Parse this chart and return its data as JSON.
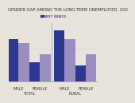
{
  "title": "GENDER GAP AMONG THE LONG-TERM UNEMPLOYED, 200",
  "series": {
    "2007": [
      65,
      30,
      78,
      25
    ],
    "2013": [
      58,
      42,
      65,
      42
    ]
  },
  "colors": {
    "2007": "#2B3990",
    "2013": "#9B8DC0"
  },
  "legend_labels": [
    "2007",
    "2013"
  ],
  "ylim": [
    0,
    90
  ],
  "background_color": "#E8E4DC",
  "title_fontsize": 3.8,
  "tick_fontsize": 3.5,
  "bar_width": 0.32,
  "group_labels": [
    "MALE",
    "FEMALE",
    "MALE",
    "FEMALE"
  ],
  "group_section_labels": [
    "TOTAL",
    "RURAL"
  ],
  "positions": [
    0.18,
    0.82,
    1.55,
    2.18
  ],
  "section_centers": [
    0.5,
    1.865
  ],
  "divider_x": 1.18,
  "xlim": [
    -0.1,
    2.55
  ]
}
